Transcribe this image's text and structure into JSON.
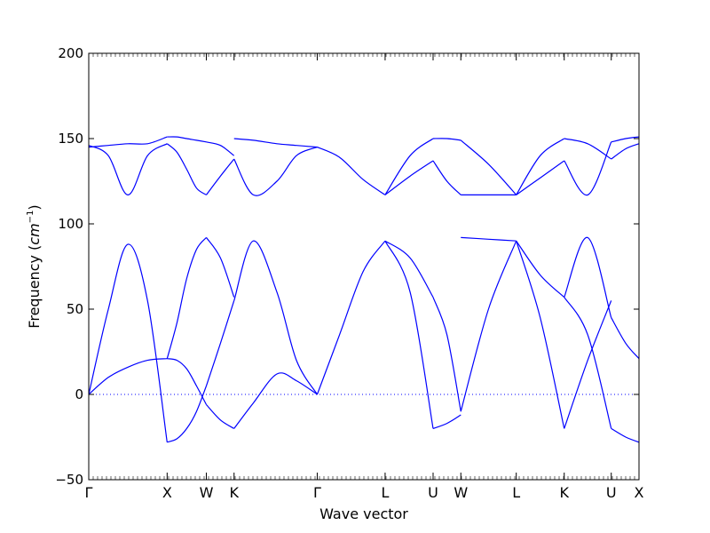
{
  "chart_data": {
    "type": "line",
    "title": "",
    "xlabel": "Wave vector",
    "ylabel": "Frequency",
    "ylabel_unit": "cm",
    "ylabel_unit_exp": "−1",
    "ylim": [
      -50,
      200
    ],
    "yticks": [
      -50,
      0,
      50,
      100,
      150,
      200
    ],
    "grid": false,
    "line_color": "#0000ff",
    "zero_line_color": "#0000ff",
    "x_ticks": [
      {
        "label": "Γ",
        "pos": 0
      },
      {
        "label": "X",
        "pos": 1.0
      },
      {
        "label": "W",
        "pos": 1.5
      },
      {
        "label": "K",
        "pos": 1.854
      },
      {
        "label": "Γ",
        "pos": 2.915
      },
      {
        "label": "L",
        "pos": 3.781
      },
      {
        "label": "U",
        "pos": 4.393
      },
      {
        "label": "W",
        "pos": 4.747
      },
      {
        "label": "L",
        "pos": 5.454
      },
      {
        "label": "K",
        "pos": 6.066
      },
      {
        "label": "U",
        "pos": 6.666
      },
      {
        "label": "X",
        "pos": 7.02
      }
    ],
    "series": [
      {
        "x": [
          0,
          0.25,
          0.5,
          0.75,
          1.0
        ],
        "y": [
          146,
          140,
          117,
          140,
          147
        ]
      },
      {
        "x": [
          0,
          0.25,
          0.5,
          0.75,
          1.0
        ],
        "y": [
          145,
          146,
          147,
          147,
          151
        ]
      },
      {
        "x": [
          0,
          0.25,
          0.5,
          0.75,
          1.0
        ],
        "y": [
          0,
          10,
          16,
          20,
          21
        ]
      },
      {
        "x": [
          0,
          0.25,
          0.5,
          0.75,
          1.0
        ],
        "y": [
          0,
          50,
          88,
          55,
          -28
        ]
      },
      {
        "x": [
          1.0,
          1.125,
          1.25,
          1.375,
          1.5
        ],
        "y": [
          147,
          142,
          132,
          121,
          117
        ]
      },
      {
        "x": [
          1.0,
          1.125,
          1.25,
          1.375,
          1.5
        ],
        "y": [
          151,
          151,
          150,
          149,
          148
        ]
      },
      {
        "x": [
          1.0,
          1.125,
          1.25,
          1.375,
          1.5
        ],
        "y": [
          21,
          42,
          68,
          85,
          92
        ]
      },
      {
        "x": [
          1.0,
          1.125,
          1.25,
          1.375,
          1.5
        ],
        "y": [
          21,
          20,
          15,
          5,
          -6
        ]
      },
      {
        "x": [
          1.0,
          1.125,
          1.25,
          1.375,
          1.5
        ],
        "y": [
          -28,
          -26,
          -20,
          -10,
          5
        ]
      },
      {
        "x": [
          1.5,
          1.68,
          1.854
        ],
        "y": [
          117,
          128,
          138
        ]
      },
      {
        "x": [
          1.5,
          1.68,
          1.854
        ],
        "y": [
          148,
          146,
          140
        ]
      },
      {
        "x": [
          1.5,
          1.68,
          1.854
        ],
        "y": [
          92,
          80,
          57
        ]
      },
      {
        "x": [
          1.5,
          1.68,
          1.854
        ],
        "y": [
          -6,
          -15,
          -20
        ]
      },
      {
        "x": [
          1.5,
          1.68,
          1.854
        ],
        "y": [
          5,
          30,
          55
        ]
      },
      {
        "x": [
          1.854,
          2.1,
          2.4,
          2.65,
          2.915
        ],
        "y": [
          150,
          149,
          147,
          146,
          145
        ]
      },
      {
        "x": [
          1.854,
          2.1,
          2.4,
          2.65,
          2.915
        ],
        "y": [
          138,
          117,
          125,
          140,
          145
        ]
      },
      {
        "x": [
          1.854,
          2.1,
          2.4,
          2.65,
          2.915
        ],
        "y": [
          55,
          90,
          60,
          20,
          0
        ]
      },
      {
        "x": [
          1.854,
          2.1,
          2.4,
          2.65,
          2.915
        ],
        "y": [
          -20,
          -5,
          12,
          8,
          0
        ]
      },
      {
        "x": [
          2.915,
          3.2,
          3.5,
          3.781
        ],
        "y": [
          145,
          139,
          126,
          117
        ]
      },
      {
        "x": [
          2.915,
          3.2,
          3.5,
          3.781
        ],
        "y": [
          0,
          35,
          72,
          90
        ]
      },
      {
        "x": [
          3.781,
          4.1,
          4.393
        ],
        "y": [
          117,
          128,
          137
        ]
      },
      {
        "x": [
          3.781,
          4.1,
          4.393
        ],
        "y": [
          117,
          140,
          150
        ]
      },
      {
        "x": [
          3.781,
          4.1,
          4.393
        ],
        "y": [
          90,
          80,
          57
        ]
      },
      {
        "x": [
          3.781,
          4.1,
          4.393
        ],
        "y": [
          90,
          60,
          -20
        ]
      },
      {
        "x": [
          4.393,
          4.57,
          4.747
        ],
        "y": [
          150,
          150,
          149
        ]
      },
      {
        "x": [
          4.393,
          4.57,
          4.747
        ],
        "y": [
          137,
          125,
          117
        ]
      },
      {
        "x": [
          4.393,
          4.57,
          4.747
        ],
        "y": [
          57,
          35,
          -10
        ]
      },
      {
        "x": [
          4.393,
          4.57,
          4.747
        ],
        "y": [
          -20,
          -17,
          -12
        ]
      },
      {
        "x": [
          4.747,
          5.1,
          5.454
        ],
        "y": [
          149,
          135,
          117
        ]
      },
      {
        "x": [
          4.747,
          5.1,
          5.454
        ],
        "y": [
          117,
          117,
          117
        ]
      },
      {
        "x": [
          4.747,
          5.1,
          5.454
        ],
        "y": [
          92,
          91,
          90
        ]
      },
      {
        "x": [
          4.747,
          5.1,
          5.454
        ],
        "y": [
          -10,
          50,
          90
        ]
      },
      {
        "x": [
          5.454,
          5.76,
          6.066
        ],
        "y": [
          117,
          140,
          150
        ]
      },
      {
        "x": [
          5.454,
          5.76,
          6.066
        ],
        "y": [
          117,
          127,
          137
        ]
      },
      {
        "x": [
          5.454,
          5.76,
          6.066
        ],
        "y": [
          90,
          70,
          57
        ]
      },
      {
        "x": [
          5.454,
          5.76,
          6.066
        ],
        "y": [
          90,
          45,
          -20
        ]
      },
      {
        "x": [
          6.066,
          6.366,
          6.666
        ],
        "y": [
          150,
          147,
          138
        ]
      },
      {
        "x": [
          6.066,
          6.366,
          6.666
        ],
        "y": [
          137,
          117,
          148
        ]
      },
      {
        "x": [
          6.066,
          6.366,
          6.666
        ],
        "y": [
          57,
          92,
          45
        ]
      },
      {
        "x": [
          6.066,
          6.366,
          6.666
        ],
        "y": [
          -20,
          20,
          55
        ]
      },
      {
        "x": [
          6.066,
          6.366,
          6.666
        ],
        "y": [
          57,
          35,
          -20
        ]
      },
      {
        "x": [
          6.666,
          6.85,
          7.02
        ],
        "y": [
          138,
          144,
          147
        ]
      },
      {
        "x": [
          6.666,
          6.85,
          7.02
        ],
        "y": [
          148,
          150,
          151
        ]
      },
      {
        "x": [
          6.666,
          6.85,
          7.02
        ],
        "y": [
          45,
          30,
          21
        ]
      },
      {
        "x": [
          6.666,
          6.85,
          7.02
        ],
        "y": [
          -20,
          -25,
          -28
        ]
      }
    ]
  }
}
